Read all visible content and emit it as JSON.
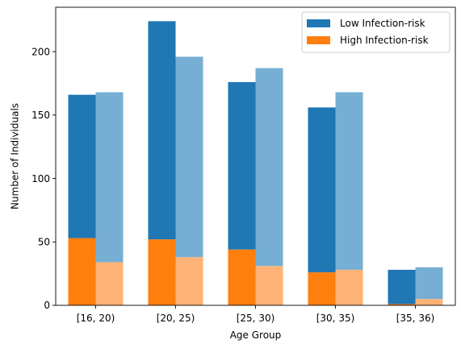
{
  "chart_data": {
    "type": "bar",
    "categories": [
      "[16, 20)",
      "[20, 25)",
      "[25, 30)",
      "[30, 35)",
      "[35, 36)"
    ],
    "xlabel": "Age Group",
    "ylabel": "Number of Individuals",
    "ylim": [
      0,
      235
    ],
    "yticks": [
      0,
      50,
      100,
      150,
      200
    ],
    "grid": false,
    "legend_position": "top-right",
    "legend": [
      {
        "label": "Low Infection-risk",
        "color": "#1f77b4"
      },
      {
        "label": "High Infection-risk",
        "color": "#ff7f0e"
      }
    ],
    "groups": [
      {
        "style": "solid",
        "stacks": [
          {
            "name": "Low Infection-risk",
            "color": "#1f77b4",
            "values": [
              113,
              172,
              132,
              130,
              27
            ]
          },
          {
            "name": "High Infection-risk",
            "color": "#ff7f0e",
            "values": [
              53,
              52,
              44,
              26,
              1
            ]
          }
        ],
        "totals": [
          166,
          224,
          176,
          156,
          28
        ]
      },
      {
        "style": "light",
        "stacks": [
          {
            "name": "Low Infection-risk",
            "color": "#77aed4",
            "values": [
              134,
              158,
              156,
              140,
              25
            ]
          },
          {
            "name": "High Infection-risk",
            "color": "#ffb276",
            "values": [
              34,
              38,
              31,
              28,
              5
            ]
          }
        ],
        "totals": [
          168,
          196,
          187,
          168,
          30
        ]
      }
    ]
  }
}
